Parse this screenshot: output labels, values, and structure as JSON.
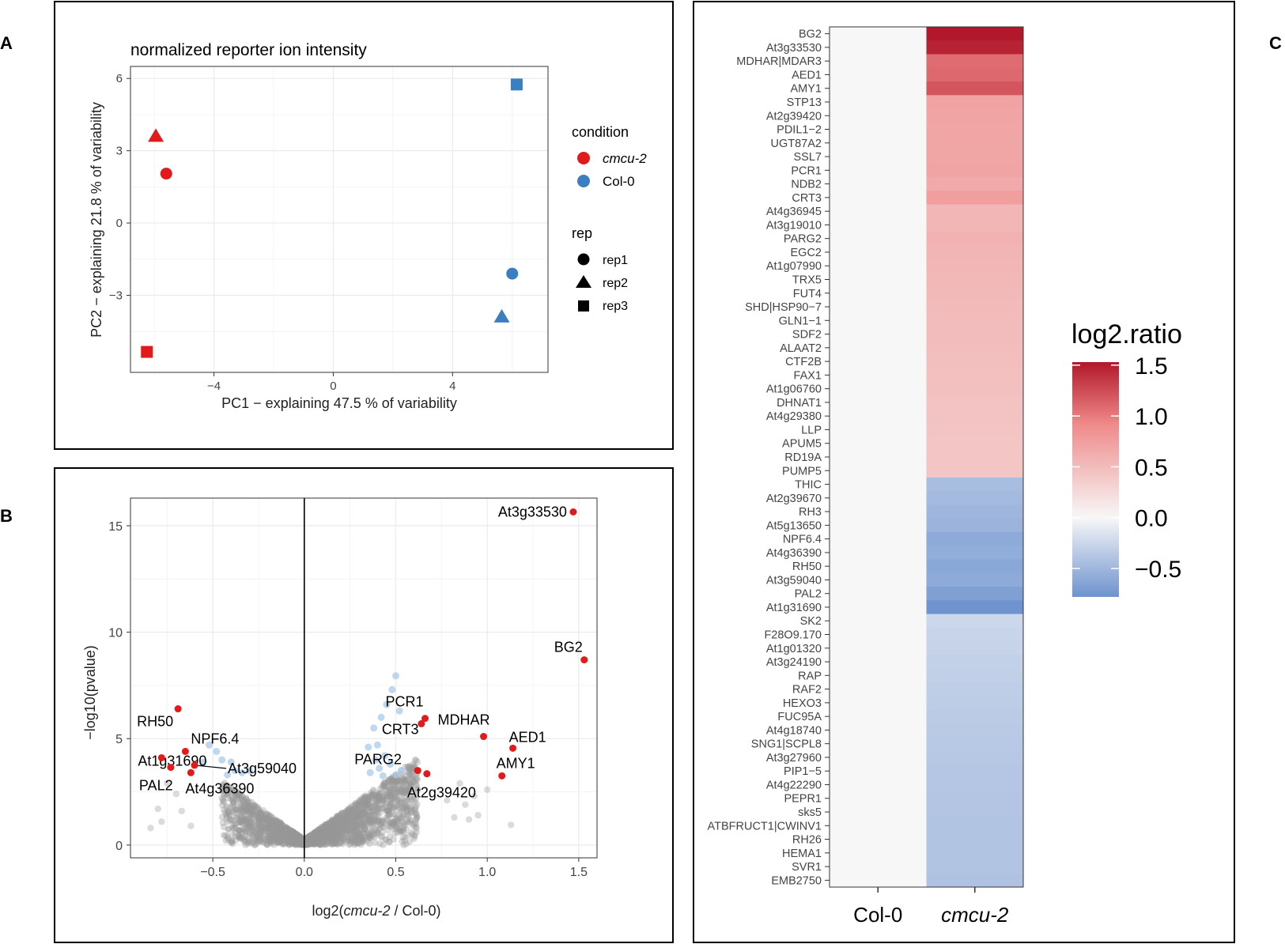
{
  "panels": {
    "a_label": "A",
    "b_label": "B",
    "c_label": "C"
  },
  "colors": {
    "red": "#e31a1c",
    "blue": "#3a7fc0",
    "grey_points": "#999999",
    "light_blue_points": "#a9c9ea",
    "heat_high": "#b2182b",
    "heat_mid": "#f7f7f7",
    "heat_low": "#6e93cf"
  },
  "chart_data": [
    {
      "id": "pca",
      "type": "scatter",
      "title": "normalized reporter ion intensity",
      "xlabel": "PC1 − explaining 47.5 % of variability",
      "ylabel": "PC2 − explaining 21.8 % of variability",
      "xlim": [
        -6.8,
        7.2
      ],
      "ylim": [
        -6.2,
        6.5
      ],
      "xticks": [
        -4,
        0,
        4
      ],
      "xtick_labels": [
        "−4",
        "0",
        "4"
      ],
      "yticks": [
        -3,
        0,
        3,
        6
      ],
      "ytick_labels": [
        "−3",
        "0",
        "3",
        "6"
      ],
      "grid": true,
      "points": [
        {
          "condition": "cmcu-2",
          "rep": "rep2",
          "x": -5.95,
          "y": 3.6
        },
        {
          "condition": "cmcu-2",
          "rep": "rep1",
          "x": -5.6,
          "y": 2.05
        },
        {
          "condition": "cmcu-2",
          "rep": "rep3",
          "x": -6.25,
          "y": -5.35
        },
        {
          "condition": "Col-0",
          "rep": "rep3",
          "x": 6.15,
          "y": 5.75
        },
        {
          "condition": "Col-0",
          "rep": "rep1",
          "x": 6.0,
          "y": -2.1
        },
        {
          "condition": "Col-0",
          "rep": "rep2",
          "x": 5.65,
          "y": -3.9
        }
      ],
      "legend": {
        "condition_title": "condition",
        "conditions": [
          {
            "label": "cmcu-2",
            "italic": true,
            "color": "#e31a1c"
          },
          {
            "label": "Col-0",
            "italic": false,
            "color": "#3a7fc0"
          }
        ],
        "rep_title": "rep",
        "reps": [
          {
            "label": "rep1",
            "shape": "circle"
          },
          {
            "label": "rep2",
            "shape": "triangle"
          },
          {
            "label": "rep3",
            "shape": "square"
          }
        ],
        "placement": "right"
      }
    },
    {
      "id": "volcano",
      "type": "scatter",
      "xlabel_parts": [
        "log2(",
        "cmcu-2",
        " / Col-0)"
      ],
      "ylabel": "−log10(pvalue)",
      "xlim": [
        -0.95,
        1.6
      ],
      "ylim": [
        -0.6,
        16.3
      ],
      "xticks": [
        -0.5,
        0,
        0.5,
        1,
        1.5
      ],
      "xtick_labels": [
        "−0.5",
        "0.0",
        "0.5",
        "1.0",
        "1.5"
      ],
      "yticks": [
        0,
        5,
        10,
        15
      ],
      "ytick_labels": [
        "0",
        "5",
        "10",
        "15"
      ],
      "grid": true,
      "vline_x": 0,
      "background_cloud": "grey points forming a V-shaped cloud around x = 0 (not individually labeled)",
      "light_blue_points": [
        [
          0.5,
          7.95
        ],
        [
          0.48,
          7.3
        ],
        [
          0.45,
          6.6
        ],
        [
          0.42,
          6.0
        ],
        [
          0.52,
          6.3
        ],
        [
          0.38,
          5.5
        ],
        [
          0.4,
          4.7
        ],
        [
          0.35,
          4.6
        ],
        [
          0.44,
          4.2
        ],
        [
          0.39,
          4.0
        ],
        [
          0.47,
          3.8
        ],
        [
          0.41,
          3.6
        ],
        [
          0.53,
          3.5
        ],
        [
          0.36,
          3.4
        ],
        [
          0.5,
          3.3
        ],
        [
          0.43,
          3.25
        ],
        [
          -0.52,
          4.7
        ],
        [
          -0.48,
          4.4
        ],
        [
          -0.45,
          4.0
        ],
        [
          -0.4,
          3.9
        ],
        [
          -0.38,
          3.5
        ],
        [
          -0.34,
          3.4
        ],
        [
          -0.3,
          3.5
        ],
        [
          -0.42,
          3.3
        ],
        [
          -0.55,
          3.9
        ]
      ],
      "highlighted_points": [
        {
          "label": "At3g33530",
          "x": 1.47,
          "y": 15.65
        },
        {
          "label": "BG2",
          "x": 1.53,
          "y": 8.7
        },
        {
          "label": "PCR1",
          "x": 0.66,
          "y": 5.95
        },
        {
          "label": "MDHAR",
          "x": 0.98,
          "y": 5.1
        },
        {
          "label": "AED1",
          "x": 1.14,
          "y": 4.55
        },
        {
          "label": "CRT3",
          "x": 0.64,
          "y": 5.7
        },
        {
          "label": "AMY1",
          "x": 1.08,
          "y": 3.25
        },
        {
          "label": "PARG2",
          "x": 0.62,
          "y": 3.5
        },
        {
          "label": "At2g39420",
          "x": 0.67,
          "y": 3.35
        },
        {
          "label": "RH50",
          "x": -0.69,
          "y": 6.4
        },
        {
          "label": "NPF6.4",
          "x": -0.65,
          "y": 4.4
        },
        {
          "label": "At1g31690",
          "x": -0.78,
          "y": 4.1
        },
        {
          "label": "PAL2",
          "x": -0.73,
          "y": 3.65
        },
        {
          "label": "At3g59040",
          "x": -0.6,
          "y": 3.75
        },
        {
          "label": "At4g36390",
          "x": -0.62,
          "y": 3.4
        }
      ]
    },
    {
      "id": "heatmap",
      "type": "heatmap",
      "columns": [
        "Col-0",
        "cmcu-2"
      ],
      "columns_italic": [
        false,
        true
      ],
      "rows": [
        {
          "gene": "BG2",
          "value": 1.53
        },
        {
          "gene": "At3g33530",
          "value": 1.47
        },
        {
          "gene": "MDHAR|MDAR3",
          "value": 1.08
        },
        {
          "gene": "AED1",
          "value": 1.1
        },
        {
          "gene": "AMY1",
          "value": 1.2
        },
        {
          "gene": "STP13",
          "value": 0.72
        },
        {
          "gene": "At2g39420",
          "value": 0.7
        },
        {
          "gene": "PDIL1−2",
          "value": 0.69
        },
        {
          "gene": "UGT87A2",
          "value": 0.68
        },
        {
          "gene": "SSL7",
          "value": 0.68
        },
        {
          "gene": "PCR1",
          "value": 0.7
        },
        {
          "gene": "NDB2",
          "value": 0.66
        },
        {
          "gene": "CRT3",
          "value": 0.75
        },
        {
          "gene": "At4g36945",
          "value": 0.55
        },
        {
          "gene": "At3g19010",
          "value": 0.55
        },
        {
          "gene": "PARG2",
          "value": 0.58
        },
        {
          "gene": "EGC2",
          "value": 0.56
        },
        {
          "gene": "At1g07990",
          "value": 0.55
        },
        {
          "gene": "TRX5",
          "value": 0.53
        },
        {
          "gene": "FUT4",
          "value": 0.52
        },
        {
          "gene": "SHD|HSP90−7",
          "value": 0.51
        },
        {
          "gene": "GLN1−1",
          "value": 0.5
        },
        {
          "gene": "SDF2",
          "value": 0.5
        },
        {
          "gene": "ALAAT2",
          "value": 0.49
        },
        {
          "gene": "CTF2B",
          "value": 0.48
        },
        {
          "gene": "FAX1",
          "value": 0.47
        },
        {
          "gene": "At1g06760",
          "value": 0.46
        },
        {
          "gene": "DHNAT1",
          "value": 0.45
        },
        {
          "gene": "At4g29380",
          "value": 0.44
        },
        {
          "gene": "LLP",
          "value": 0.43
        },
        {
          "gene": "APUM5",
          "value": 0.42
        },
        {
          "gene": "RD19A",
          "value": 0.42
        },
        {
          "gene": "PUMP5",
          "value": 0.41
        },
        {
          "gene": "THIC",
          "value": -0.45
        },
        {
          "gene": "At2g39670",
          "value": -0.47
        },
        {
          "gene": "RH3",
          "value": -0.5
        },
        {
          "gene": "At5g13650",
          "value": -0.52
        },
        {
          "gene": "NPF6.4",
          "value": -0.6
        },
        {
          "gene": "At4g36390",
          "value": -0.58
        },
        {
          "gene": "RH50",
          "value": -0.62
        },
        {
          "gene": "At3g59040",
          "value": -0.6
        },
        {
          "gene": "PAL2",
          "value": -0.68
        },
        {
          "gene": "At1g31690",
          "value": -0.78
        },
        {
          "gene": "SK2",
          "value": -0.25
        },
        {
          "gene": "F28O9.170",
          "value": -0.27
        },
        {
          "gene": "At1g01320",
          "value": -0.28
        },
        {
          "gene": "At3g24190",
          "value": -0.3
        },
        {
          "gene": "RAP",
          "value": -0.31
        },
        {
          "gene": "RAF2",
          "value": -0.32
        },
        {
          "gene": "HEXO3",
          "value": -0.33
        },
        {
          "gene": "FUC95A",
          "value": -0.34
        },
        {
          "gene": "At4g18740",
          "value": -0.35
        },
        {
          "gene": "SNG1|SCPL8",
          "value": -0.36
        },
        {
          "gene": "At3g27960",
          "value": -0.37
        },
        {
          "gene": "PIP1−5",
          "value": -0.38
        },
        {
          "gene": "At4g22290",
          "value": -0.38
        },
        {
          "gene": "PEPR1",
          "value": -0.39
        },
        {
          "gene": "sks5",
          "value": -0.39
        },
        {
          "gene": "ATBFRUCT1|CWINV1",
          "value": -0.4
        },
        {
          "gene": "RH26",
          "value": -0.4
        },
        {
          "gene": "HEMA1",
          "value": -0.4
        },
        {
          "gene": "SVR1",
          "value": -0.4
        },
        {
          "gene": "EMB2750",
          "value": -0.41
        }
      ],
      "control_value": 0,
      "colorbar": {
        "title": "log2.ratio",
        "range": [
          -0.78,
          1.53
        ],
        "ticks": [
          1.5,
          1.0,
          0.5,
          0.0,
          -0.5
        ],
        "tick_labels": [
          "1.5",
          "1.0",
          "0.5",
          "0.0",
          "−0.5"
        ],
        "placement": "right"
      }
    }
  ]
}
